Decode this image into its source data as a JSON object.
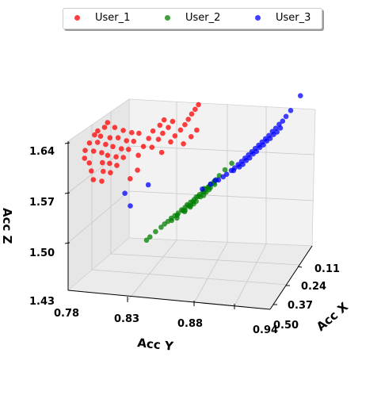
{
  "chart_data": {
    "type": "scatter",
    "projection": "3d",
    "xlabel": "Acc X",
    "ylabel": "Acc Y",
    "zlabel": "Acc Z",
    "x_ticks": [
      "0.11",
      "0.24",
      "0.37",
      "0.50"
    ],
    "y_ticks": [
      "0.78",
      "0.83",
      "0.88",
      "0.94"
    ],
    "z_ticks": [
      "1.43",
      "1.50",
      "1.57",
      "1.64"
    ],
    "xlim": [
      0.05,
      0.52
    ],
    "ylim": [
      0.78,
      0.94
    ],
    "zlim": [
      1.43,
      1.64
    ],
    "grid": true,
    "legend_position": "top-center",
    "series": [
      {
        "name": "User_1",
        "color": "#ff0000",
        "points": [
          [
            0.4,
            0.785,
            1.605
          ],
          [
            0.38,
            0.787,
            1.612
          ],
          [
            0.35,
            0.789,
            1.618
          ],
          [
            0.33,
            0.79,
            1.62
          ],
          [
            0.42,
            0.786,
            1.598
          ],
          [
            0.39,
            0.791,
            1.603
          ],
          [
            0.36,
            0.792,
            1.61
          ],
          [
            0.34,
            0.793,
            1.615
          ],
          [
            0.31,
            0.794,
            1.622
          ],
          [
            0.29,
            0.795,
            1.625
          ],
          [
            0.41,
            0.789,
            1.59
          ],
          [
            0.37,
            0.796,
            1.598
          ],
          [
            0.34,
            0.797,
            1.604
          ],
          [
            0.32,
            0.799,
            1.61
          ],
          [
            0.28,
            0.8,
            1.617
          ],
          [
            0.43,
            0.792,
            1.583
          ],
          [
            0.39,
            0.798,
            1.588
          ],
          [
            0.36,
            0.8,
            1.593
          ],
          [
            0.33,
            0.802,
            1.6
          ],
          [
            0.3,
            0.804,
            1.607
          ],
          [
            0.27,
            0.806,
            1.612
          ],
          [
            0.45,
            0.795,
            1.575
          ],
          [
            0.41,
            0.8,
            1.58
          ],
          [
            0.38,
            0.803,
            1.586
          ],
          [
            0.35,
            0.806,
            1.59
          ],
          [
            0.32,
            0.808,
            1.596
          ],
          [
            0.29,
            0.81,
            1.602
          ],
          [
            0.26,
            0.812,
            1.608
          ],
          [
            0.44,
            0.801,
            1.572
          ],
          [
            0.4,
            0.805,
            1.577
          ],
          [
            0.37,
            0.808,
            1.582
          ],
          [
            0.34,
            0.811,
            1.588
          ],
          [
            0.31,
            0.813,
            1.594
          ],
          [
            0.28,
            0.815,
            1.6
          ],
          [
            0.25,
            0.817,
            1.606
          ],
          [
            0.3,
            0.82,
            1.585
          ],
          [
            0.27,
            0.822,
            1.592
          ],
          [
            0.24,
            0.824,
            1.598
          ],
          [
            0.22,
            0.826,
            1.605
          ],
          [
            0.2,
            0.83,
            1.61
          ],
          [
            0.18,
            0.832,
            1.614
          ],
          [
            0.26,
            0.828,
            1.59
          ],
          [
            0.23,
            0.831,
            1.596
          ],
          [
            0.21,
            0.833,
            1.601
          ],
          [
            0.19,
            0.836,
            1.606
          ],
          [
            0.17,
            0.838,
            1.611
          ],
          [
            0.25,
            0.835,
            1.582
          ],
          [
            0.28,
            0.818,
            1.56
          ],
          [
            0.32,
            0.815,
            1.555
          ],
          [
            0.22,
            0.84,
            1.592
          ],
          [
            0.2,
            0.842,
            1.597
          ],
          [
            0.18,
            0.845,
            1.602
          ],
          [
            0.16,
            0.847,
            1.606
          ],
          [
            0.15,
            0.849,
            1.612
          ],
          [
            0.14,
            0.851,
            1.618
          ],
          [
            0.13,
            0.853,
            1.623
          ],
          [
            0.12,
            0.855,
            1.628
          ],
          [
            0.19,
            0.848,
            1.585
          ],
          [
            0.16,
            0.852,
            1.59
          ],
          [
            0.14,
            0.855,
            1.596
          ]
        ]
      },
      {
        "name": "User_2",
        "color": "#008000",
        "points": [
          [
            0.46,
            0.845,
            1.512
          ],
          [
            0.44,
            0.848,
            1.515
          ],
          [
            0.43,
            0.85,
            1.518
          ],
          [
            0.42,
            0.852,
            1.52
          ],
          [
            0.41,
            0.854,
            1.523
          ],
          [
            0.4,
            0.856,
            1.525
          ],
          [
            0.39,
            0.858,
            1.527
          ],
          [
            0.38,
            0.86,
            1.53
          ],
          [
            0.37,
            0.862,
            1.532
          ],
          [
            0.36,
            0.863,
            1.534
          ],
          [
            0.35,
            0.865,
            1.536
          ],
          [
            0.34,
            0.867,
            1.538
          ],
          [
            0.33,
            0.868,
            1.54
          ],
          [
            0.32,
            0.87,
            1.542
          ],
          [
            0.31,
            0.872,
            1.544
          ],
          [
            0.3,
            0.873,
            1.546
          ],
          [
            0.29,
            0.875,
            1.548
          ],
          [
            0.28,
            0.876,
            1.55
          ],
          [
            0.27,
            0.878,
            1.552
          ],
          [
            0.42,
            0.855,
            1.522
          ],
          [
            0.4,
            0.858,
            1.526
          ],
          [
            0.38,
            0.861,
            1.529
          ],
          [
            0.36,
            0.864,
            1.533
          ],
          [
            0.34,
            0.866,
            1.535
          ],
          [
            0.32,
            0.869,
            1.539
          ],
          [
            0.3,
            0.872,
            1.542
          ],
          [
            0.28,
            0.874,
            1.545
          ],
          [
            0.26,
            0.877,
            1.548
          ],
          [
            0.37,
            0.862,
            1.528
          ],
          [
            0.35,
            0.865,
            1.531
          ],
          [
            0.33,
            0.868,
            1.534
          ],
          [
            0.31,
            0.87,
            1.537
          ],
          [
            0.29,
            0.873,
            1.54
          ],
          [
            0.27,
            0.875,
            1.543
          ],
          [
            0.39,
            0.857,
            1.52
          ],
          [
            0.36,
            0.861,
            1.524
          ],
          [
            0.34,
            0.864,
            1.527
          ],
          [
            0.33,
            0.866,
            1.53
          ],
          [
            0.49,
            0.84,
            1.505
          ],
          [
            0.48,
            0.842,
            1.508
          ],
          [
            0.24,
            0.88,
            1.555
          ],
          [
            0.22,
            0.883,
            1.56
          ],
          [
            0.2,
            0.887,
            1.566
          ],
          [
            0.26,
            0.879,
            1.553
          ],
          [
            0.31,
            0.873,
            1.549
          ],
          [
            0.29,
            0.871,
            1.535
          ],
          [
            0.27,
            0.874,
            1.54
          ],
          [
            0.25,
            0.877,
            1.544
          ]
        ]
      },
      {
        "name": "User_3",
        "color": "#0000ff",
        "points": [
          [
            0.13,
            0.925,
            1.625
          ],
          [
            0.14,
            0.923,
            1.62
          ],
          [
            0.15,
            0.921,
            1.617
          ],
          [
            0.16,
            0.919,
            1.613
          ],
          [
            0.17,
            0.917,
            1.61
          ],
          [
            0.18,
            0.915,
            1.606
          ],
          [
            0.19,
            0.913,
            1.603
          ],
          [
            0.2,
            0.911,
            1.6
          ],
          [
            0.21,
            0.909,
            1.597
          ],
          [
            0.22,
            0.907,
            1.594
          ],
          [
            0.23,
            0.905,
            1.591
          ],
          [
            0.24,
            0.903,
            1.588
          ],
          [
            0.25,
            0.901,
            1.585
          ],
          [
            0.26,
            0.899,
            1.582
          ],
          [
            0.27,
            0.897,
            1.579
          ],
          [
            0.28,
            0.895,
            1.576
          ],
          [
            0.15,
            0.922,
            1.612
          ],
          [
            0.17,
            0.918,
            1.606
          ],
          [
            0.19,
            0.914,
            1.6
          ],
          [
            0.21,
            0.91,
            1.594
          ],
          [
            0.23,
            0.906,
            1.588
          ],
          [
            0.25,
            0.902,
            1.582
          ],
          [
            0.27,
            0.898,
            1.576
          ],
          [
            0.16,
            0.92,
            1.608
          ],
          [
            0.18,
            0.916,
            1.602
          ],
          [
            0.2,
            0.912,
            1.596
          ],
          [
            0.22,
            0.908,
            1.59
          ],
          [
            0.24,
            0.904,
            1.584
          ],
          [
            0.26,
            0.9,
            1.578
          ],
          [
            0.3,
            0.89,
            1.57
          ],
          [
            0.32,
            0.885,
            1.565
          ],
          [
            0.34,
            0.88,
            1.562
          ],
          [
            0.36,
            0.875,
            1.558
          ],
          [
            0.28,
            0.894,
            1.572
          ],
          [
            0.31,
            0.888,
            1.568
          ],
          [
            0.33,
            0.883,
            1.566
          ],
          [
            0.11,
            0.935,
            1.652
          ],
          [
            0.12,
            0.928,
            1.632
          ],
          [
            0.45,
            0.82,
            1.56
          ],
          [
            0.4,
            0.835,
            1.565
          ],
          [
            0.46,
            0.825,
            1.545
          ],
          [
            0.29,
            0.893,
            1.574
          ]
        ]
      }
    ]
  }
}
